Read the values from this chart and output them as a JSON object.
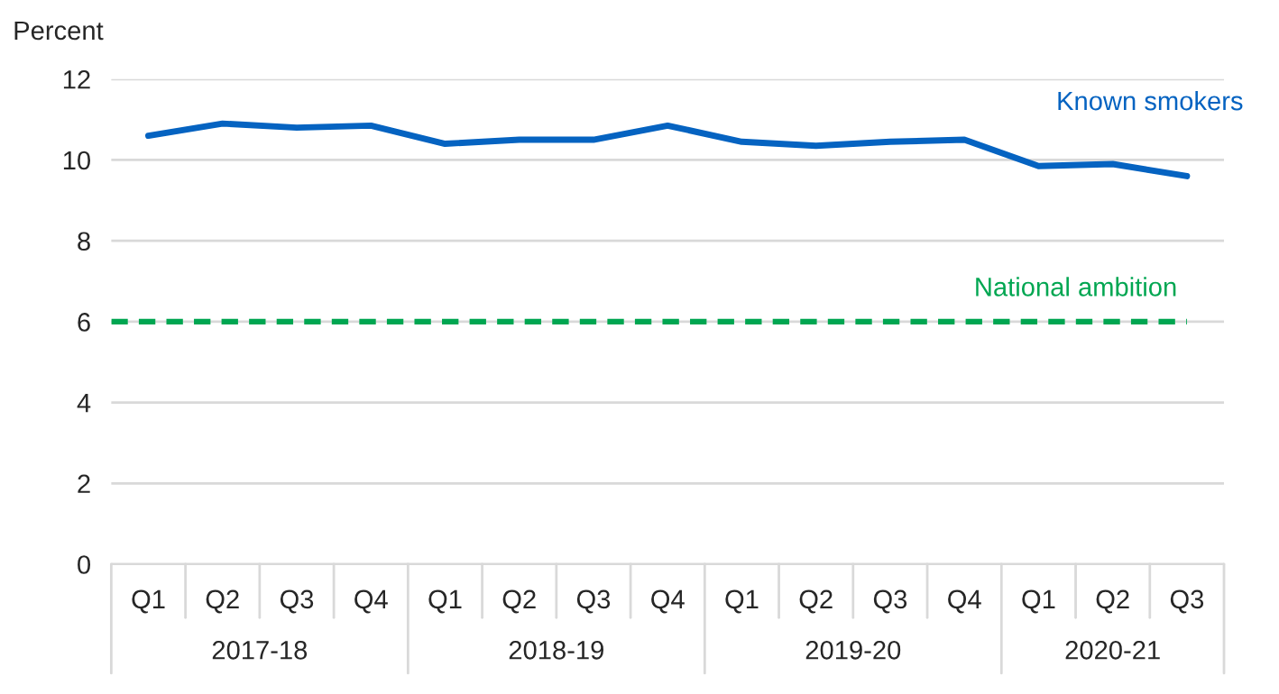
{
  "chart_data": {
    "type": "line",
    "ylabel": "Percent",
    "categories": [
      "Q1",
      "Q2",
      "Q3",
      "Q4",
      "Q1",
      "Q2",
      "Q3",
      "Q4",
      "Q1",
      "Q2",
      "Q3",
      "Q4",
      "Q1",
      "Q2",
      "Q3"
    ],
    "series": [
      {
        "name": "Known smokers",
        "color": "#0563c1",
        "values": [
          10.6,
          10.9,
          10.8,
          10.85,
          10.4,
          10.5,
          10.5,
          10.85,
          10.45,
          10.35,
          10.45,
          10.5,
          9.85,
          9.9,
          9.6
        ]
      }
    ],
    "ref_lines": [
      {
        "axis": "y",
        "value": 6,
        "label": "National ambition",
        "color": "#00a651",
        "line_style": "dashed"
      }
    ],
    "annotations": [
      "2017-18",
      "2018-19",
      "2019-20",
      "2020-21"
    ],
    "ylim": [
      0,
      12
    ],
    "yticks": [
      0,
      2,
      4,
      6,
      8,
      10,
      12
    ],
    "grid": "y",
    "legend": false,
    "marker": "none",
    "line_style": "solid"
  }
}
